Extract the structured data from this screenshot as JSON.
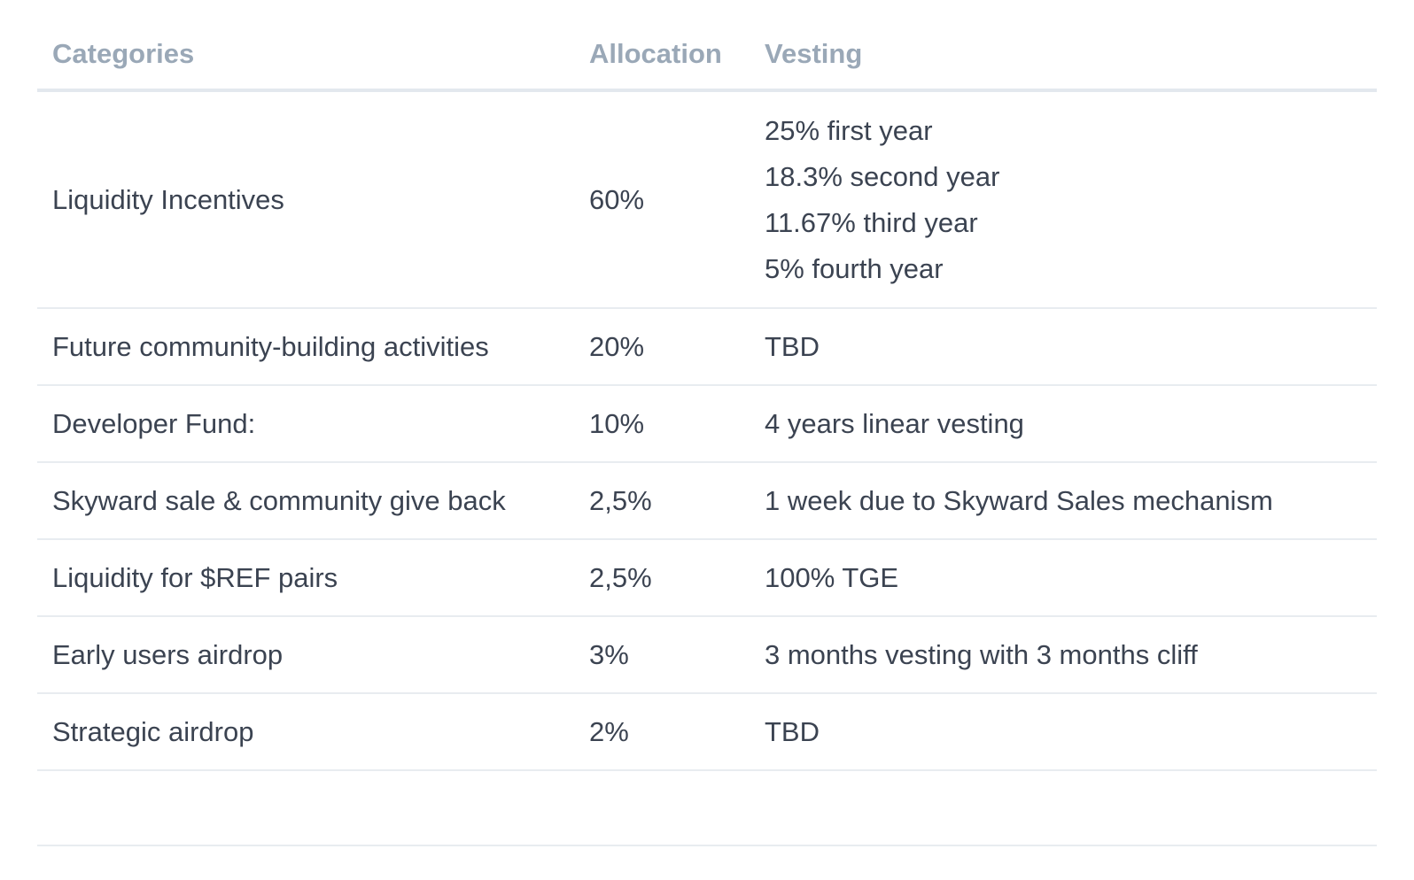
{
  "table": {
    "headers": [
      "Categories",
      "Allocation",
      "Vesting"
    ],
    "rows": [
      {
        "category": "Liquidity Incentives",
        "allocation": "60%",
        "vesting": [
          "25% first year",
          "18.3% second year",
          "11.67% third year",
          "5% fourth year"
        ]
      },
      {
        "category": "Future community-building activities",
        "allocation": "20%",
        "vesting": [
          "TBD"
        ]
      },
      {
        "category": "Developer Fund:",
        "allocation": "10%",
        "vesting": [
          "4 years linear vesting"
        ]
      },
      {
        "category": "Skyward sale & community give back",
        "allocation": "2,5%",
        "vesting": [
          "1 week due to Skyward Sales mechanism"
        ]
      },
      {
        "category": "Liquidity for $REF pairs",
        "allocation": "2,5%",
        "vesting": [
          "100% TGE"
        ]
      },
      {
        "category": "Early users airdrop",
        "allocation": "3%",
        "vesting": [
          "3 months vesting with 3 months cliff"
        ]
      },
      {
        "category": "Strategic airdrop",
        "allocation": "2%",
        "vesting": [
          "TBD"
        ]
      }
    ]
  }
}
